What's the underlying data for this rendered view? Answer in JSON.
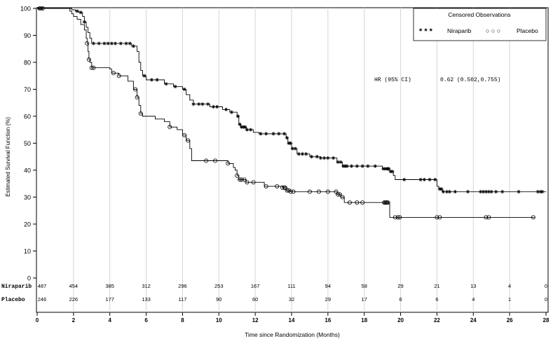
{
  "chart_data": {
    "type": "line",
    "subtype": "kaplan-meier",
    "title": "",
    "xlabel": "Time since Randomization (Months)",
    "ylabel": "Estimated Survival Function (%)",
    "xlim": [
      0,
      28
    ],
    "ylim": [
      0,
      100
    ],
    "x_ticks": [
      0,
      2,
      4,
      6,
      8,
      10,
      12,
      14,
      16,
      18,
      20,
      22,
      24,
      26,
      28
    ],
    "y_ticks": [
      0,
      10,
      20,
      30,
      40,
      50,
      60,
      70,
      80,
      90,
      100
    ],
    "grid": "vertical",
    "legend": {
      "title": "Censored Observations",
      "position": "top-right",
      "entries": [
        {
          "marker_text": "* * *",
          "label": "Niraparib",
          "marker": "star"
        },
        {
          "marker_text": "○ ○ ○",
          "label": "Placebo",
          "marker": "circle"
        }
      ]
    },
    "annotation": {
      "label": "HR (95% CI)",
      "value": "0.62 (0.502,0.755)"
    },
    "series": [
      {
        "name": "Niraparib",
        "color": "#000000",
        "marker": "star",
        "steps": [
          [
            0,
            100
          ],
          [
            1.9,
            99.5
          ],
          [
            2.1,
            99
          ],
          [
            2.3,
            98.5
          ],
          [
            2.5,
            97
          ],
          [
            2.6,
            95
          ],
          [
            2.7,
            93
          ],
          [
            2.8,
            91
          ],
          [
            2.9,
            89
          ],
          [
            3.0,
            87
          ],
          [
            5.2,
            86
          ],
          [
            5.5,
            84
          ],
          [
            5.6,
            80
          ],
          [
            5.7,
            77
          ],
          [
            5.8,
            75
          ],
          [
            6.0,
            73.5
          ],
          [
            7.0,
            72
          ],
          [
            7.5,
            71
          ],
          [
            8.0,
            70
          ],
          [
            8.2,
            68
          ],
          [
            8.4,
            66
          ],
          [
            8.6,
            64.5
          ],
          [
            9.5,
            63.5
          ],
          [
            10.2,
            62.5
          ],
          [
            10.6,
            61.5
          ],
          [
            11.0,
            60
          ],
          [
            11.1,
            57
          ],
          [
            11.2,
            56
          ],
          [
            11.5,
            55
          ],
          [
            11.9,
            54
          ],
          [
            12.2,
            53.5
          ],
          [
            13.7,
            52
          ],
          [
            13.8,
            50
          ],
          [
            14.0,
            48
          ],
          [
            14.3,
            46
          ],
          [
            15.0,
            45
          ],
          [
            15.6,
            44.5
          ],
          [
            16.5,
            43
          ],
          [
            16.8,
            41.5
          ],
          [
            19.0,
            40.5
          ],
          [
            19.4,
            39.5
          ],
          [
            19.6,
            38
          ],
          [
            19.7,
            36.5
          ],
          [
            22.0,
            34
          ],
          [
            22.1,
            33
          ],
          [
            22.3,
            32
          ],
          [
            28,
            32
          ]
        ],
        "censored": [
          0.1,
          0.25,
          2.2,
          2.4,
          2.6,
          3.1,
          3.4,
          3.7,
          3.9,
          4.1,
          4.3,
          4.6,
          4.9,
          5.1,
          5.3,
          5.9,
          6.3,
          6.6,
          7.1,
          7.6,
          8.1,
          8.6,
          8.9,
          9.1,
          9.4,
          9.7,
          9.9,
          10.4,
          10.7,
          11.05,
          11.15,
          11.25,
          11.35,
          11.45,
          11.55,
          11.75,
          12.3,
          12.6,
          13.0,
          13.3,
          13.6,
          13.75,
          13.85,
          13.95,
          14.05,
          14.2,
          14.4,
          14.6,
          14.8,
          15.1,
          15.4,
          15.6,
          15.8,
          16.0,
          16.3,
          16.55,
          16.7,
          16.85,
          16.95,
          17.05,
          17.3,
          17.6,
          17.9,
          18.2,
          18.6,
          19.05,
          19.15,
          19.25,
          19.3,
          19.35,
          19.45,
          19.55,
          20.2,
          21.1,
          21.3,
          21.6,
          21.9,
          22.15,
          22.25,
          22.35,
          22.55,
          22.7,
          23.0,
          23.7,
          24.4,
          24.55,
          24.7,
          24.85,
          25.0,
          25.25,
          25.6,
          26.5,
          27.55,
          27.7,
          27.8
        ]
      },
      {
        "name": "Placebo",
        "color": "#000000",
        "marker": "circle",
        "steps": [
          [
            0,
            100
          ],
          [
            1.8,
            99
          ],
          [
            1.9,
            98
          ],
          [
            2.0,
            97
          ],
          [
            2.2,
            96
          ],
          [
            2.4,
            94
          ],
          [
            2.6,
            92
          ],
          [
            2.7,
            89
          ],
          [
            2.75,
            87
          ],
          [
            2.8,
            84
          ],
          [
            2.85,
            81
          ],
          [
            2.9,
            80
          ],
          [
            3.0,
            78
          ],
          [
            4.0,
            77.5
          ],
          [
            4.1,
            76
          ],
          [
            4.5,
            75
          ],
          [
            5.0,
            73
          ],
          [
            5.3,
            70
          ],
          [
            5.5,
            67
          ],
          [
            5.6,
            64
          ],
          [
            5.7,
            61
          ],
          [
            5.8,
            60
          ],
          [
            6.5,
            59
          ],
          [
            7.0,
            58
          ],
          [
            7.3,
            56
          ],
          [
            7.7,
            55
          ],
          [
            8.0,
            53
          ],
          [
            8.2,
            51
          ],
          [
            8.4,
            48
          ],
          [
            8.5,
            43.5
          ],
          [
            10.5,
            42.5
          ],
          [
            10.8,
            41
          ],
          [
            10.9,
            40
          ],
          [
            11.0,
            38
          ],
          [
            11.1,
            36.5
          ],
          [
            11.5,
            35.5
          ],
          [
            12.5,
            34
          ],
          [
            13.5,
            33.5
          ],
          [
            13.7,
            32.5
          ],
          [
            13.9,
            32
          ],
          [
            16.5,
            31
          ],
          [
            16.7,
            30
          ],
          [
            16.9,
            28
          ],
          [
            19.3,
            28
          ],
          [
            19.4,
            22.5
          ],
          [
            27.4,
            22.5
          ]
        ],
        "censored": [
          0.15,
          0.3,
          2.75,
          2.85,
          3.0,
          3.1,
          4.2,
          4.5,
          5.4,
          5.5,
          5.7,
          7.3,
          8.1,
          8.3,
          9.3,
          9.8,
          10.5,
          11.0,
          11.15,
          11.25,
          11.4,
          11.55,
          11.9,
          12.6,
          13.2,
          13.5,
          13.6,
          13.65,
          13.75,
          13.85,
          13.95,
          14.1,
          15.0,
          15.5,
          16.0,
          16.45,
          16.55,
          16.65,
          16.8,
          17.2,
          17.6,
          17.9,
          19.1,
          19.15,
          19.2,
          19.25,
          19.3,
          19.7,
          19.85,
          19.95,
          22.0,
          22.15,
          24.7,
          24.85,
          27.3
        ]
      }
    ],
    "risk_table": {
      "rows": [
        {
          "label": "Niraparib",
          "counts": [
            "487",
            "454",
            "385",
            "312",
            "296",
            "253",
            "167",
            "111",
            "94",
            "58",
            "29",
            "21",
            "13",
            "4",
            "0"
          ]
        },
        {
          "label": "Placebo",
          "counts": [
            "246",
            "226",
            "177",
            "133",
            "117",
            "90",
            "60",
            "32",
            "29",
            "17",
            "6",
            "6",
            "4",
            "1",
            "0"
          ]
        }
      ]
    }
  }
}
